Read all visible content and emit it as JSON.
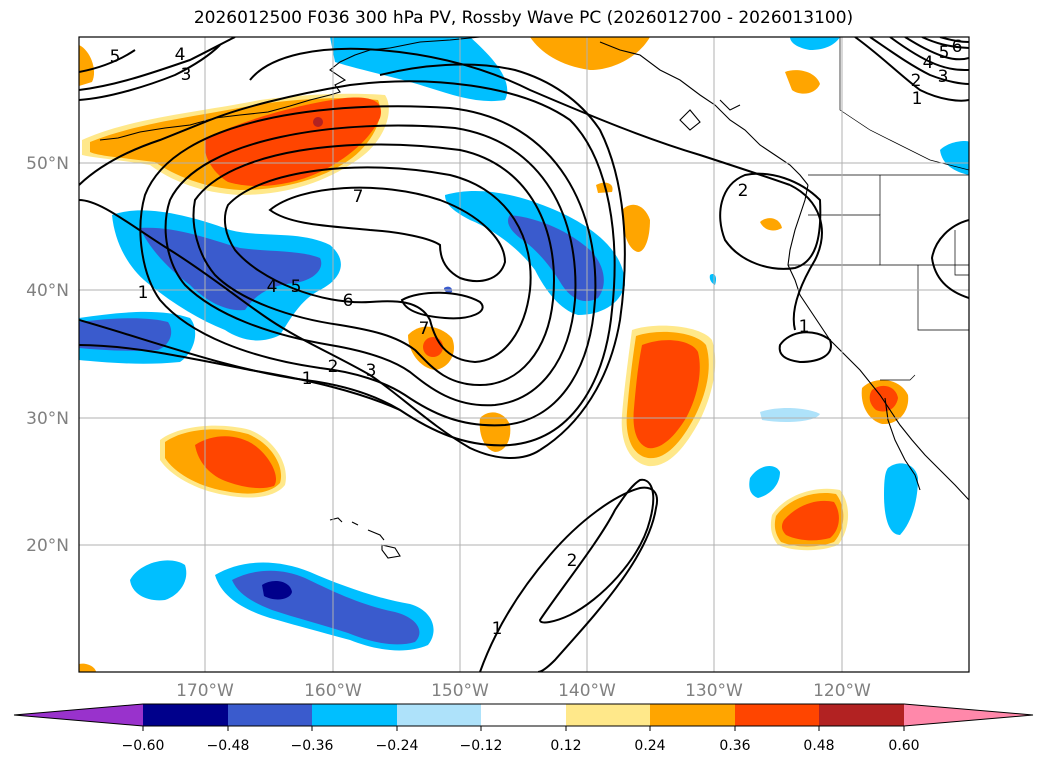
{
  "title": "2026012500 F036 300 hPa PV, Rossby Wave PC (2026012700 - 2026013100)",
  "map": {
    "lat_labels": [
      "50°N",
      "40°N",
      "30°N",
      "20°N"
    ],
    "lon_labels": [
      "170°W",
      "160°W",
      "150°W",
      "140°W",
      "130°W",
      "120°W"
    ],
    "grid": true,
    "label_color": "#808080"
  },
  "contours": {
    "color": "#000000",
    "labels": [
      "5",
      "4",
      "3",
      "1",
      "4",
      "5",
      "6",
      "7",
      "7",
      "2",
      "3",
      "1",
      "2",
      "2",
      "1",
      "6",
      "5",
      "4",
      "3",
      "2",
      "1",
      "1"
    ]
  },
  "colorbar": {
    "ticks": [
      "−0.60",
      "−0.48",
      "−0.36",
      "−0.24",
      "−0.12",
      "0.12",
      "0.24",
      "0.36",
      "0.48",
      "0.60"
    ],
    "colors": [
      "#9932cc",
      "#00008b",
      "#3a5bcd",
      "#00bfff",
      "#aee2fa",
      "#ffffff",
      "#ffe88a",
      "#ffa500",
      "#ff4500",
      "#b22222",
      "#ff88aa"
    ]
  }
}
